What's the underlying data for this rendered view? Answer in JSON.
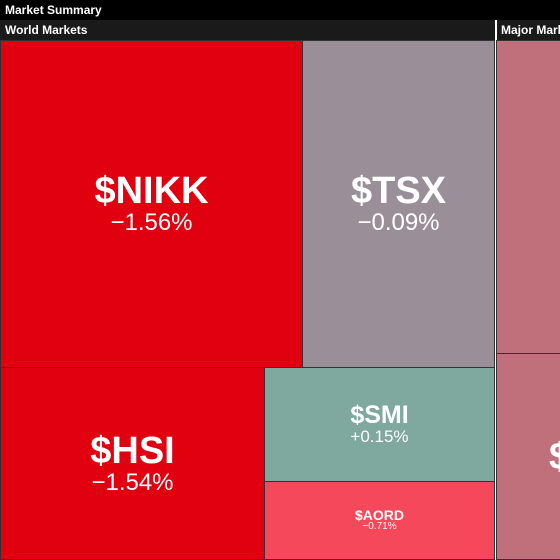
{
  "header": {
    "title": "Market Summary"
  },
  "sections": [
    {
      "title": "World Markets",
      "tiles": [
        {
          "symbol": "$NIKK",
          "change": "−1.56%",
          "color": "#e0000f"
        },
        {
          "symbol": "$TSX",
          "change": "−0.09%",
          "color": "#9a8f98"
        },
        {
          "symbol": "$HSI",
          "change": "−1.54%",
          "color": "#e0000f"
        },
        {
          "symbol": "$SMI",
          "change": "+0.15%",
          "color": "#7fa89e"
        },
        {
          "symbol": "$AORD",
          "change": "−0.71%",
          "color": "#f5485a"
        }
      ]
    },
    {
      "title": "Major Markets",
      "tiles": [
        {
          "color": "#c0707a"
        },
        {
          "symbol": "$",
          "color": "#c0707a"
        }
      ]
    }
  ]
}
